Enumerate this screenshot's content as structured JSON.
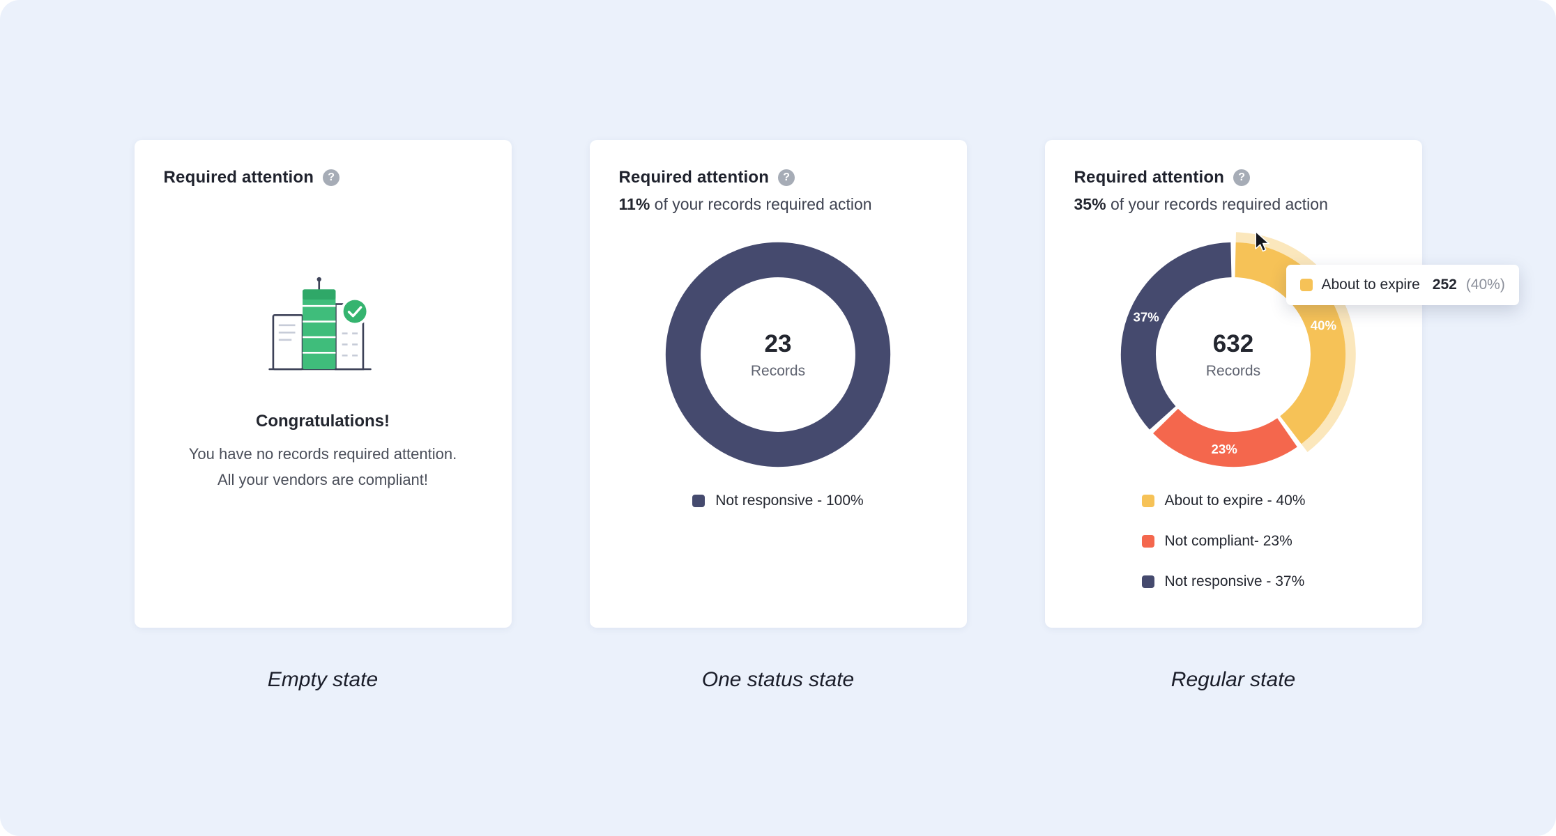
{
  "icons": {
    "help": "?"
  },
  "colors": {
    "background": "#EBF1FB",
    "card": "#FFFFFF",
    "navy": "#454A6E",
    "yellow": "#F6C257",
    "orange": "#F4674D",
    "green": "#35B46F"
  },
  "card_empty": {
    "title": "Required attention",
    "heading": "Congratulations!",
    "line1": "You have no records required attention.",
    "line2": "All your vendors are compliant!",
    "caption": "Empty state"
  },
  "card_one": {
    "title": "Required attention",
    "subtitle_value": "11%",
    "subtitle_text": "of your records required action",
    "center_value": "23",
    "center_label": "Records",
    "legend": [
      {
        "label": "Not responsive - 100%",
        "color": "#454A6E"
      }
    ],
    "caption": "One status state"
  },
  "card_regular": {
    "title": "Required attention",
    "subtitle_value": "35%",
    "subtitle_text": "of your records required action",
    "center_value": "632",
    "center_label": "Records",
    "tooltip": {
      "label": "About to expire",
      "value": "252",
      "pct": "(40%)",
      "color": "#F6C257"
    },
    "legend": [
      {
        "label": "About to expire - 40%",
        "color": "#F6C257"
      },
      {
        "label": "Not compliant- 23%",
        "color": "#F4674D"
      },
      {
        "label": "Not responsive - 37%",
        "color": "#454A6E"
      }
    ],
    "caption": "Regular state"
  },
  "chart_data": [
    {
      "type": "pie",
      "title": "Required attention - One status state",
      "subtitle": "11% of your records required action",
      "center_value": 23,
      "center_label": "Records",
      "legend_position": "bottom",
      "segments": [
        {
          "name": "Not responsive",
          "pct": 100,
          "color": "#454A6E",
          "label": ""
        }
      ]
    },
    {
      "type": "pie",
      "title": "Required attention - Regular state",
      "subtitle": "35% of your records required action",
      "center_value": 632,
      "center_label": "Records",
      "legend_position": "bottom",
      "segments": [
        {
          "name": "About to expire",
          "pct": 40,
          "count": 252,
          "color": "#F6C257",
          "label": "40%",
          "highlighted": true
        },
        {
          "name": "Not compliant",
          "pct": 23,
          "color": "#F4674D",
          "label": "23%"
        },
        {
          "name": "Not responsive",
          "pct": 37,
          "color": "#454A6E",
          "label": "37%"
        }
      ]
    }
  ]
}
